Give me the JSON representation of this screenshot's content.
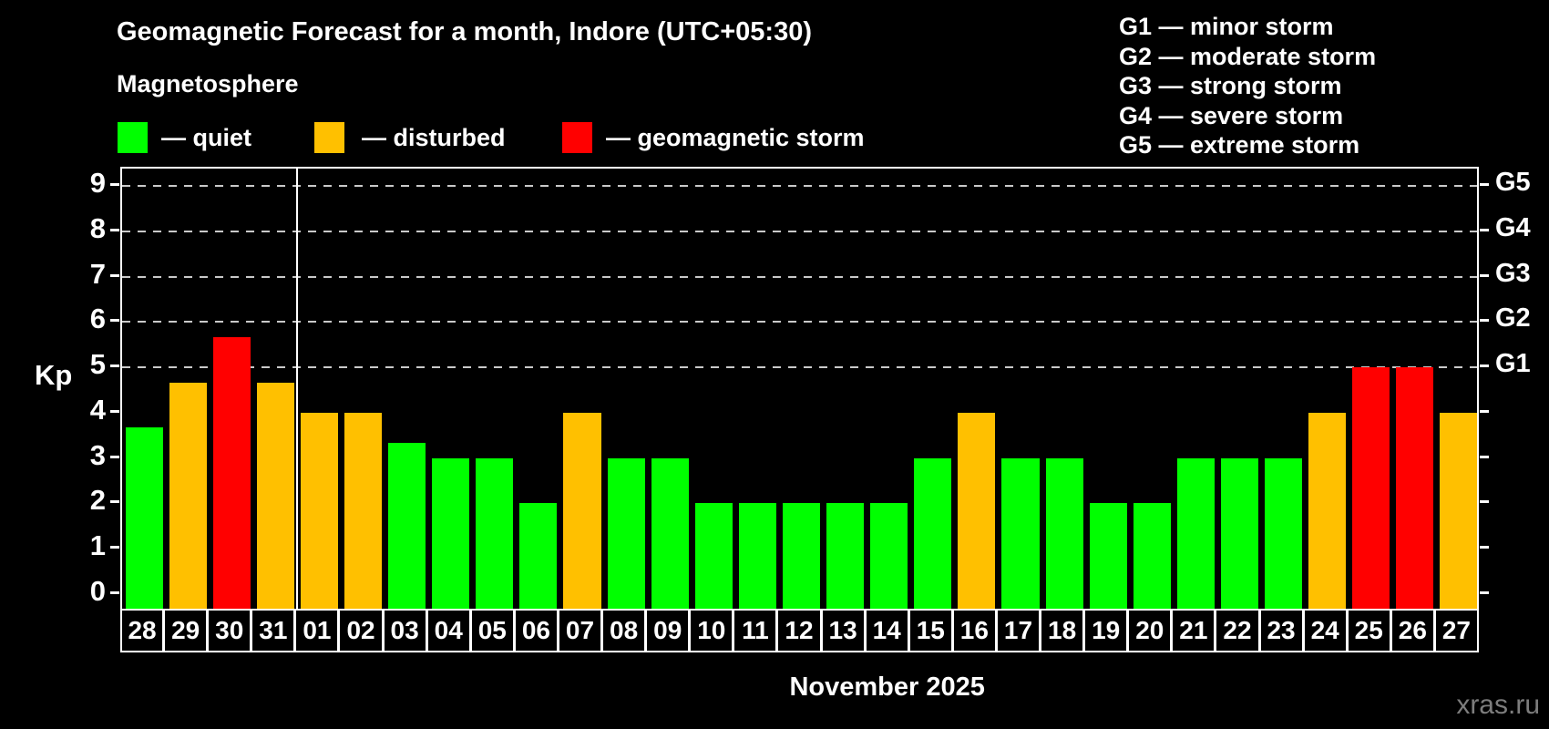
{
  "header": {
    "title": "Geomagnetic Forecast for a month, Indore (UTC+05:30)",
    "subtitle": "Magnetosphere"
  },
  "legend": {
    "items": [
      {
        "key": "quiet",
        "label": "— quiet",
        "color": "#00ff00"
      },
      {
        "key": "disturbed",
        "label": "— disturbed",
        "color": "#ffc000"
      },
      {
        "key": "storm",
        "label": "— geomagnetic storm",
        "color": "#ff0000"
      }
    ]
  },
  "g_legend": {
    "lines": [
      "G1 — minor storm",
      "G2 — moderate storm",
      "G3 — strong storm",
      "G4 — severe storm",
      "G5 — extreme storm"
    ]
  },
  "chart_data": {
    "type": "bar",
    "title": "Geomagnetic Forecast for a month, Indore (UTC+05:30)",
    "ylabel": "Kp",
    "xlabel": "November 2025",
    "ylim": [
      0,
      9
    ],
    "grid": "horizontal dashed lines at Kp 5,6,7,8,9",
    "legend_position": "top-left",
    "kp_ticks": [
      0,
      1,
      2,
      3,
      4,
      5,
      6,
      7,
      8,
      9
    ],
    "right_axis_labels": [
      {
        "label": "G5",
        "kp": 9
      },
      {
        "label": "G4",
        "kp": 8
      },
      {
        "label": "G3",
        "kp": 7
      },
      {
        "label": "G2",
        "kp": 6
      },
      {
        "label": "G1",
        "kp": 5
      }
    ],
    "month_divider_after_index": 3,
    "days": [
      {
        "day": "28",
        "kp": 3.67,
        "status": "quiet"
      },
      {
        "day": "29",
        "kp": 4.67,
        "status": "disturbed"
      },
      {
        "day": "30",
        "kp": 5.67,
        "status": "storm"
      },
      {
        "day": "31",
        "kp": 4.67,
        "status": "disturbed"
      },
      {
        "day": "01",
        "kp": 4,
        "status": "disturbed"
      },
      {
        "day": "02",
        "kp": 4,
        "status": "disturbed"
      },
      {
        "day": "03",
        "kp": 3.33,
        "status": "quiet"
      },
      {
        "day": "04",
        "kp": 3,
        "status": "quiet"
      },
      {
        "day": "05",
        "kp": 3,
        "status": "quiet"
      },
      {
        "day": "06",
        "kp": 2,
        "status": "quiet"
      },
      {
        "day": "07",
        "kp": 4,
        "status": "disturbed"
      },
      {
        "day": "08",
        "kp": 3,
        "status": "quiet"
      },
      {
        "day": "09",
        "kp": 3,
        "status": "quiet"
      },
      {
        "day": "10",
        "kp": 2,
        "status": "quiet"
      },
      {
        "day": "11",
        "kp": 2,
        "status": "quiet"
      },
      {
        "day": "12",
        "kp": 2,
        "status": "quiet"
      },
      {
        "day": "13",
        "kp": 2,
        "status": "quiet"
      },
      {
        "day": "14",
        "kp": 2,
        "status": "quiet"
      },
      {
        "day": "15",
        "kp": 3,
        "status": "quiet"
      },
      {
        "day": "16",
        "kp": 4,
        "status": "disturbed"
      },
      {
        "day": "17",
        "kp": 3,
        "status": "quiet"
      },
      {
        "day": "18",
        "kp": 3,
        "status": "quiet"
      },
      {
        "day": "19",
        "kp": 2,
        "status": "quiet"
      },
      {
        "day": "20",
        "kp": 2,
        "status": "quiet"
      },
      {
        "day": "21",
        "kp": 3,
        "status": "quiet"
      },
      {
        "day": "22",
        "kp": 3,
        "status": "quiet"
      },
      {
        "day": "23",
        "kp": 3,
        "status": "quiet"
      },
      {
        "day": "24",
        "kp": 4,
        "status": "disturbed"
      },
      {
        "day": "25",
        "kp": 5,
        "status": "storm"
      },
      {
        "day": "26",
        "kp": 5,
        "status": "storm"
      },
      {
        "day": "27",
        "kp": 4,
        "status": "disturbed"
      }
    ]
  },
  "footer": {
    "caption": "November 2025",
    "watermark": "xras.ru"
  },
  "colors": {
    "quiet": "#00ff00",
    "disturbed": "#ffc000",
    "storm": "#ff0000",
    "axis": "#ffffff",
    "grid": "#c9c9c9",
    "background": "#000000",
    "watermark": "#7d7d7d"
  }
}
